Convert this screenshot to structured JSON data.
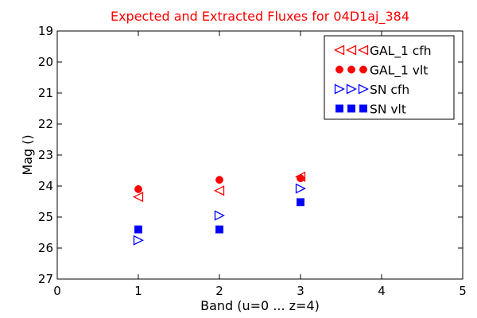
{
  "chart_data": {
    "type": "scatter",
    "title": "Expected and Extracted Fluxes for 04D1aj_384",
    "title_color": "#ff0000",
    "xlabel": "Band (u=0 ... z=4)",
    "ylabel": "Mag ()",
    "xlim": [
      0,
      5
    ],
    "ylim": [
      27,
      19
    ],
    "y_inverted": true,
    "xticks": [
      "0",
      "1",
      "2",
      "3",
      "4",
      "5"
    ],
    "yticks": [
      "19",
      "20",
      "21",
      "22",
      "23",
      "24",
      "25",
      "26",
      "27"
    ],
    "grid": false,
    "legend_position": "top-right",
    "series": [
      {
        "name": "GAL_1 cfh",
        "marker": "triangle-left-open",
        "color": "#ff0000",
        "x": [
          1,
          2,
          3
        ],
        "y": [
          24.35,
          24.15,
          23.7
        ]
      },
      {
        "name": "GAL_1 vlt",
        "marker": "circle-filled",
        "color": "#ff0000",
        "x": [
          1,
          2,
          3
        ],
        "y": [
          24.1,
          23.8,
          23.75
        ]
      },
      {
        "name": "SN cfh",
        "marker": "triangle-right-open",
        "color": "#0000ff",
        "x": [
          1,
          2,
          3
        ],
        "y": [
          25.75,
          24.95,
          24.08
        ]
      },
      {
        "name": "SN vlt",
        "marker": "square-filled",
        "color": "#0000ff",
        "x": [
          1,
          2,
          3
        ],
        "y": [
          25.4,
          25.4,
          24.52
        ]
      }
    ]
  }
}
